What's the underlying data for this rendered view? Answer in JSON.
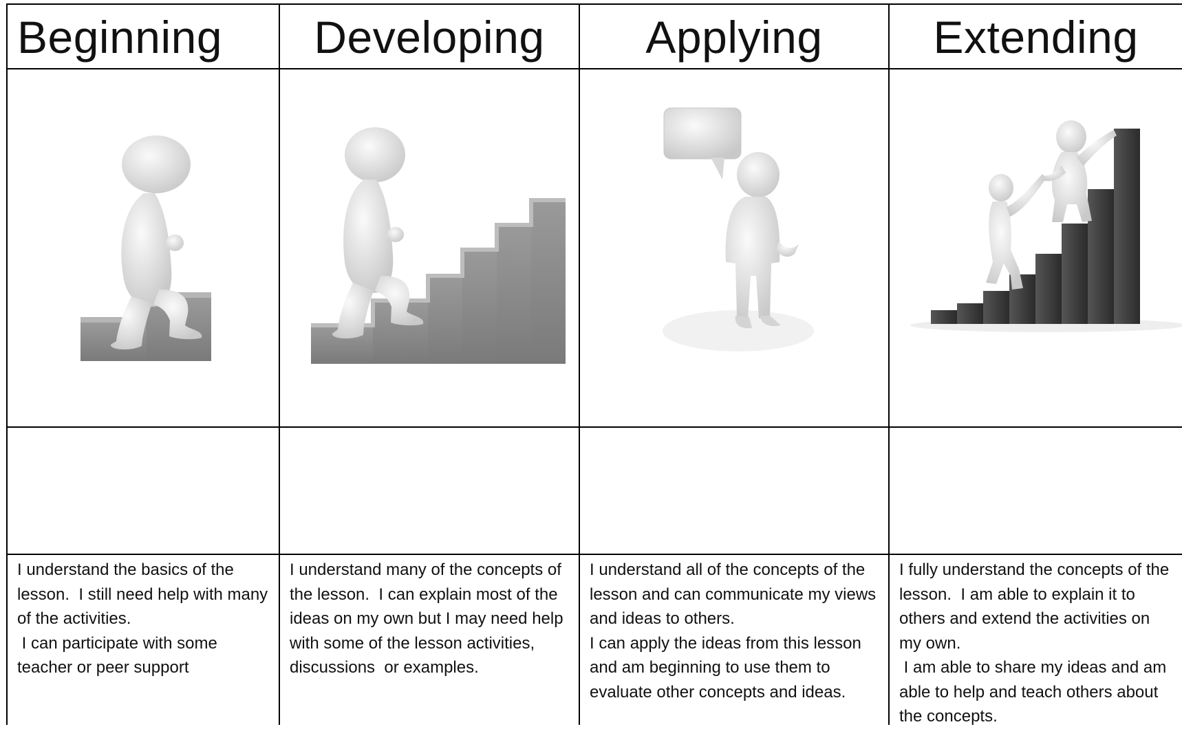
{
  "table": {
    "columns": [
      {
        "heading": "Beginning",
        "description": [
          "I understand the basics of the lesson.  I still need help with many of the activities.",
          " I can participate with some teacher or peer support"
        ]
      },
      {
        "heading": "Developing",
        "description": [
          "I understand many of the concepts of the lesson.  I can explain most of the ideas on my own but I may need help with some of the lesson activities, discussions  or examples."
        ]
      },
      {
        "heading": "Applying",
        "description": [
          "I understand all of the concepts of the lesson and can communicate my views and ideas to others.",
          "I can apply the ideas from this lesson and am beginning to use them to evaluate other concepts and ideas."
        ]
      },
      {
        "heading": "Extending",
        "description": [
          "I fully understand the concepts of the lesson.  I am able to explain it to others and extend the activities on my own.",
          " I am able to share my ideas and am able to help and teach others about the concepts."
        ]
      }
    ]
  }
}
